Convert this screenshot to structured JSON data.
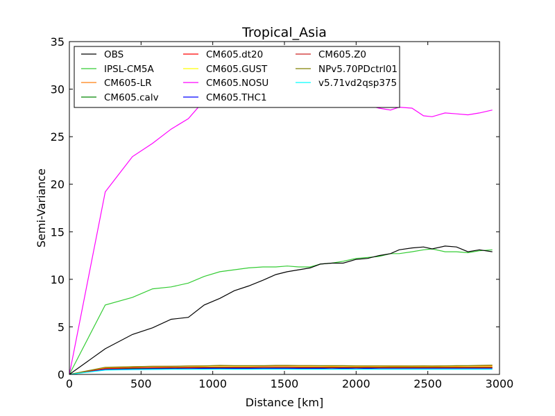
{
  "chart_data": {
    "type": "line",
    "title": "Tropical_Asia",
    "xlabel": "Distance [km]",
    "ylabel": "Semi-Variance",
    "xlim": [
      0,
      3000
    ],
    "ylim": [
      0,
      35
    ],
    "xticks": [
      0,
      500,
      1000,
      1500,
      2000,
      2500,
      3000
    ],
    "yticks": [
      0,
      5,
      10,
      15,
      20,
      25,
      30,
      35
    ],
    "grid": false,
    "legend": "top-left",
    "x": [
      0,
      250,
      440,
      580,
      710,
      830,
      940,
      1050,
      1150,
      1250,
      1350,
      1440,
      1520,
      1600,
      1680,
      1750,
      1830,
      1910,
      2000,
      2080,
      2160,
      2240,
      2300,
      2390,
      2470,
      2530,
      2620,
      2700,
      2780,
      2860,
      2950
    ],
    "series": [
      {
        "name": "OBS",
        "color": "#000000",
        "values": [
          0,
          2.7,
          4.2,
          4.9,
          5.8,
          6.0,
          7.3,
          8.0,
          8.8,
          9.3,
          9.9,
          10.5,
          10.8,
          11.0,
          11.2,
          11.6,
          11.7,
          11.7,
          12.1,
          12.2,
          12.5,
          12.7,
          13.1,
          13.3,
          13.4,
          13.2,
          13.5,
          13.4,
          12.9,
          13.1,
          12.9
        ]
      },
      {
        "name": "IPSL-CM5A",
        "color": "#33cc33",
        "values": [
          0,
          7.3,
          8.1,
          9.0,
          9.2,
          9.6,
          10.3,
          10.8,
          11.0,
          11.2,
          11.3,
          11.3,
          11.4,
          11.3,
          11.3,
          11.6,
          11.7,
          11.9,
          12.2,
          12.3,
          12.4,
          12.7,
          12.7,
          12.9,
          13.1,
          13.2,
          12.9,
          12.9,
          12.8,
          13.0,
          13.1
        ]
      },
      {
        "name": "CM605-LR",
        "color": "#ff7f0e",
        "values": [
          0,
          0.7,
          0.8,
          0.85,
          0.85,
          0.88,
          0.9,
          0.92,
          0.9,
          0.9,
          0.9,
          0.92,
          0.92,
          0.9,
          0.9,
          0.9,
          0.88,
          0.9,
          0.9,
          0.88,
          0.9,
          0.9,
          0.9,
          0.88,
          0.9,
          0.88,
          0.9,
          0.88,
          0.9,
          0.9,
          0.9
        ]
      },
      {
        "name": "CM605.calv",
        "color": "#008800",
        "values": [
          0,
          0.55,
          0.62,
          0.65,
          0.66,
          0.68,
          0.7,
          0.7,
          0.7,
          0.7,
          0.72,
          0.72,
          0.72,
          0.7,
          0.7,
          0.7,
          0.7,
          0.7,
          0.7,
          0.7,
          0.7,
          0.7,
          0.7,
          0.7,
          0.7,
          0.7,
          0.7,
          0.7,
          0.7,
          0.7,
          0.7
        ]
      },
      {
        "name": "CM605.dt20",
        "color": "#ff0000",
        "values": [
          0,
          0.6,
          0.68,
          0.7,
          0.72,
          0.72,
          0.74,
          0.75,
          0.74,
          0.74,
          0.75,
          0.75,
          0.76,
          0.74,
          0.74,
          0.74,
          0.74,
          0.74,
          0.74,
          0.74,
          0.74,
          0.74,
          0.74,
          0.74,
          0.74,
          0.74,
          0.74,
          0.74,
          0.74,
          0.74,
          0.74
        ]
      },
      {
        "name": "CM605.GUST",
        "color": "#ffff00",
        "values": [
          0,
          0.65,
          0.72,
          0.75,
          0.76,
          0.78,
          0.8,
          0.8,
          0.8,
          0.8,
          0.8,
          0.82,
          0.82,
          0.8,
          0.8,
          0.8,
          0.8,
          0.8,
          0.8,
          0.8,
          0.8,
          0.8,
          0.8,
          0.8,
          0.8,
          0.8,
          0.8,
          0.8,
          0.8,
          0.8,
          0.8
        ]
      },
      {
        "name": "CM605.NOSU",
        "color": "#ff00ff",
        "values": [
          0,
          19.2,
          22.9,
          24.3,
          25.8,
          26.9,
          28.8,
          29.8,
          30.5,
          31.0,
          31.2,
          31.1,
          31.0,
          30.5,
          30.2,
          29.8,
          29.5,
          29.0,
          28.6,
          28.3,
          28.0,
          27.8,
          28.1,
          28.0,
          27.2,
          27.1,
          27.5,
          27.4,
          27.3,
          27.5,
          27.8
        ]
      },
      {
        "name": "CM605.THC1",
        "color": "#0000ff",
        "values": [
          0,
          0.5,
          0.55,
          0.58,
          0.6,
          0.6,
          0.62,
          0.62,
          0.62,
          0.62,
          0.62,
          0.63,
          0.63,
          0.62,
          0.62,
          0.62,
          0.6,
          0.62,
          0.6,
          0.62,
          0.6,
          0.6,
          0.6,
          0.6,
          0.6,
          0.6,
          0.6,
          0.6,
          0.6,
          0.6,
          0.6
        ]
      },
      {
        "name": "CM605.Z0",
        "color": "#cc2222",
        "values": [
          0,
          0.62,
          0.7,
          0.72,
          0.74,
          0.75,
          0.76,
          0.76,
          0.76,
          0.76,
          0.77,
          0.77,
          0.77,
          0.76,
          0.76,
          0.76,
          0.76,
          0.76,
          0.76,
          0.76,
          0.76,
          0.76,
          0.76,
          0.76,
          0.76,
          0.76,
          0.76,
          0.76,
          0.76,
          0.76,
          0.76
        ]
      },
      {
        "name": "NPv5.70PDctrl01",
        "color": "#808000",
        "values": [
          0,
          0.75,
          0.82,
          0.85,
          0.86,
          0.88,
          0.9,
          0.95,
          0.92,
          0.92,
          0.92,
          0.95,
          0.95,
          0.93,
          0.93,
          0.92,
          0.92,
          0.92,
          0.9,
          0.9,
          0.9,
          0.88,
          0.88,
          0.88,
          0.9,
          0.88,
          0.9,
          0.92,
          0.92,
          0.95,
          0.98
        ]
      },
      {
        "name": "v5.71vd2qsp375",
        "color": "#00ffff",
        "values": [
          0,
          0.45,
          0.5,
          0.52,
          0.53,
          0.53,
          0.54,
          0.55,
          0.54,
          0.54,
          0.55,
          0.55,
          0.55,
          0.54,
          0.54,
          0.54,
          0.53,
          0.54,
          0.53,
          0.54,
          0.53,
          0.53,
          0.53,
          0.53,
          0.53,
          0.53,
          0.53,
          0.53,
          0.53,
          0.53,
          0.53
        ]
      }
    ]
  }
}
